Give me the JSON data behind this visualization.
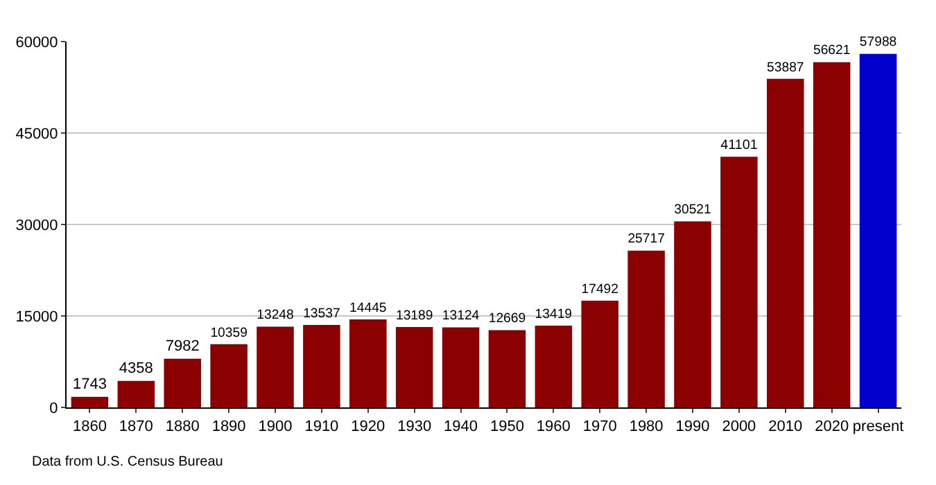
{
  "chart_data": {
    "type": "bar",
    "categories": [
      "1860",
      "1870",
      "1880",
      "1890",
      "1900",
      "1910",
      "1920",
      "1930",
      "1940",
      "1950",
      "1960",
      "1970",
      "1980",
      "1990",
      "2000",
      "2010",
      "2020",
      "present"
    ],
    "values": [
      1743,
      4358,
      7982,
      10359,
      13248,
      13537,
      14445,
      13189,
      13124,
      12669,
      13419,
      17492,
      25717,
      30521,
      41101,
      53887,
      56621,
      57988
    ],
    "colors": [
      "#8b0000",
      "#8b0000",
      "#8b0000",
      "#8b0000",
      "#8b0000",
      "#8b0000",
      "#8b0000",
      "#8b0000",
      "#8b0000",
      "#8b0000",
      "#8b0000",
      "#8b0000",
      "#8b0000",
      "#8b0000",
      "#8b0000",
      "#8b0000",
      "#8b0000",
      "#0000cd"
    ],
    "ylim": [
      0,
      60000
    ],
    "yticks": [
      0,
      15000,
      30000,
      45000,
      60000
    ],
    "grid": "y",
    "data_labels": true,
    "annotations": [
      "Data from U.S. Census Bureau"
    ]
  }
}
